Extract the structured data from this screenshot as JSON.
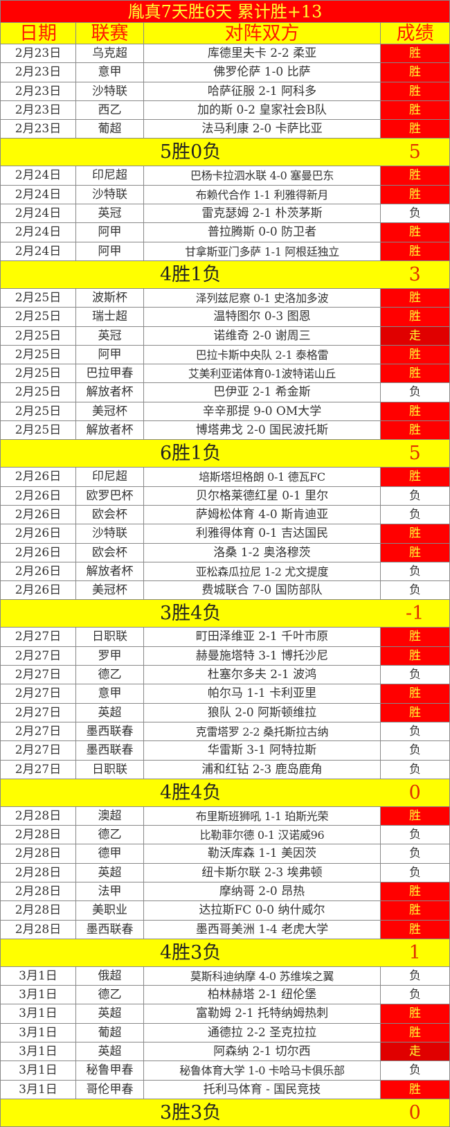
{
  "title": "胤真7天胜6天  累计胜+13",
  "headers": {
    "date": "日期",
    "league": "联赛",
    "match": "对阵双方",
    "result": "成绩"
  },
  "colors": {
    "title_bg": "#ff0000",
    "header_bg": "#ffff00",
    "win_bg": "#ff0000",
    "draw_bg": "#e00000",
    "text_yellow": "#ffff33"
  },
  "groups": [
    {
      "rows": [
        {
          "date": "2月23日",
          "league": "乌克超",
          "match": "库德里夫卡 2-2 柔亚",
          "result": "胜"
        },
        {
          "date": "2月23日",
          "league": "意甲",
          "match": "佛罗伦萨 1-0 比萨",
          "result": "胜"
        },
        {
          "date": "2月23日",
          "league": "沙特联",
          "match": "哈萨征服 2-1 阿科多",
          "result": "胜"
        },
        {
          "date": "2月23日",
          "league": "西乙",
          "match": "加的斯 0-2 皇家社会B队",
          "result": "胜"
        },
        {
          "date": "2月23日",
          "league": "葡超",
          "match": "法马利康 2-0 卡萨比亚",
          "result": "胜"
        }
      ],
      "summary": "5胜0负",
      "net": "5"
    },
    {
      "rows": [
        {
          "date": "2月24日",
          "league": "印尼超",
          "match": "巴杨卡拉泗水联 4-0 塞曼巴东",
          "result": "胜"
        },
        {
          "date": "2月24日",
          "league": "沙特联",
          "match": "布赖代合作 1-1 利雅得新月",
          "result": "胜"
        },
        {
          "date": "2月24日",
          "league": "英冠",
          "match": "雷克瑟姆 2-1 朴茨茅斯",
          "result": "负"
        },
        {
          "date": "2月24日",
          "league": "阿甲",
          "match": "普拉腾斯 0-0 防卫者",
          "result": "胜"
        },
        {
          "date": "2月24日",
          "league": "阿甲",
          "match": "甘拿斯亚门多萨 1-1 阿根廷独立",
          "result": "胜"
        }
      ],
      "summary": "4胜1负",
      "net": "3"
    },
    {
      "rows": [
        {
          "date": "2月25日",
          "league": "波斯杯",
          "match": "泽列兹尼察 0-1 史洛加多波",
          "result": "胜"
        },
        {
          "date": "2月25日",
          "league": "瑞士超",
          "match": "温特图尔 0-3 图恩",
          "result": "胜"
        },
        {
          "date": "2月25日",
          "league": "英冠",
          "match": "诺维奇 2-0 谢周三",
          "result": "走"
        },
        {
          "date": "2月25日",
          "league": "阿甲",
          "match": "巴拉卡斯中央队 2-1 泰格雷",
          "result": "胜"
        },
        {
          "date": "2月25日",
          "league": "巴拉甲春",
          "match": "艾美利亚诺体育0-1波特诺山丘",
          "result": "胜"
        },
        {
          "date": "2月25日",
          "league": "解放者杯",
          "match": "巴伊亚 2-1 希金斯",
          "result": "负"
        },
        {
          "date": "2月25日",
          "league": "美冠杯",
          "match": "辛辛那提 9-0 OM大学",
          "result": "胜"
        },
        {
          "date": "2月25日",
          "league": "解放者杯",
          "match": "博塔弗戈 2-0 国民波托斯",
          "result": "胜"
        }
      ],
      "summary": "6胜1负",
      "net": "5"
    },
    {
      "rows": [
        {
          "date": "2月26日",
          "league": "印尼超",
          "match": "培斯塔坦格朗 0-1 德瓦FC",
          "result": "胜"
        },
        {
          "date": "2月26日",
          "league": "欧罗巴杯",
          "match": "贝尔格莱德红星 0-1 里尔",
          "result": "负"
        },
        {
          "date": "2月26日",
          "league": "欧会杯",
          "match": "萨姆松体育 4-0 斯肯迪亚",
          "result": "负"
        },
        {
          "date": "2月26日",
          "league": "沙特联",
          "match": "利雅得体育 0-1 吉达国民",
          "result": "胜"
        },
        {
          "date": "2月26日",
          "league": "欧会杯",
          "match": "洛桑 1-2 奥洛穆茨",
          "result": "胜"
        },
        {
          "date": "2月26日",
          "league": "解放者杯",
          "match": "亚松森瓜拉尼 1-2 尤文提度",
          "result": "负"
        },
        {
          "date": "2月26日",
          "league": "美冠杯",
          "match": "费城联合 7-0 国防部队",
          "result": "负"
        }
      ],
      "summary": "3胜4负",
      "net": "-1"
    },
    {
      "rows": [
        {
          "date": "2月27日",
          "league": "日职联",
          "match": "町田泽维亚 2-1 千叶市原",
          "result": "胜"
        },
        {
          "date": "2月27日",
          "league": "罗甲",
          "match": "赫曼施塔特 3-1 博托沙尼",
          "result": "胜"
        },
        {
          "date": "2月27日",
          "league": "德乙",
          "match": "杜塞尔多夫 2-1 波鸿",
          "result": "负"
        },
        {
          "date": "2月27日",
          "league": "意甲",
          "match": "帕尔马 1-1 卡利亚里",
          "result": "胜"
        },
        {
          "date": "2月27日",
          "league": "英超",
          "match": "狼队 2-0 阿斯顿维拉",
          "result": "胜"
        },
        {
          "date": "2月27日",
          "league": "墨西联春",
          "match": "克雷塔罗 2-2 桑托斯拉古纳",
          "result": "负"
        },
        {
          "date": "2月27日",
          "league": "墨西联春",
          "match": "华雷斯 3-1 阿特拉斯",
          "result": "负"
        },
        {
          "date": "2月27日",
          "league": "日职联",
          "match": "浦和红钻 2-3 鹿岛鹿角",
          "result": "负"
        }
      ],
      "summary": "4胜4负",
      "net": "0"
    },
    {
      "rows": [
        {
          "date": "2月28日",
          "league": "澳超",
          "match": "布里斯班狮吼 1-1 珀斯光荣",
          "result": "胜"
        },
        {
          "date": "2月28日",
          "league": "德乙",
          "match": "比勒菲尔德 0-1 汉诺威96",
          "result": "负"
        },
        {
          "date": "2月28日",
          "league": "德甲",
          "match": "勒沃库森 1-1 美因茨",
          "result": "负"
        },
        {
          "date": "2月28日",
          "league": "英超",
          "match": "纽卡斯尔联 2-3 埃弗顿",
          "result": "负"
        },
        {
          "date": "2月28日",
          "league": "法甲",
          "match": "摩纳哥 2-0 昂热",
          "result": "胜"
        },
        {
          "date": "2月28日",
          "league": "美职业",
          "match": "达拉斯FC 0-0 纳什威尔",
          "result": "胜"
        },
        {
          "date": "2月28日",
          "league": "墨西联春",
          "match": "墨西哥美洲 1-4 老虎大学",
          "result": "胜"
        }
      ],
      "summary": "4胜3负",
      "net": "1"
    },
    {
      "rows": [
        {
          "date": "3月1日",
          "league": "俄超",
          "match": "莫斯科迪纳摩 4-0 苏维埃之翼",
          "result": "负"
        },
        {
          "date": "3月1日",
          "league": "德乙",
          "match": "柏林赫塔 2-1 纽伦堡",
          "result": "负"
        },
        {
          "date": "3月1日",
          "league": "英超",
          "match": "富勒姆 2-1 托特纳姆热刺",
          "result": "胜"
        },
        {
          "date": "3月1日",
          "league": "葡超",
          "match": "通德拉 2-2 圣克拉拉",
          "result": "胜"
        },
        {
          "date": "3月1日",
          "league": "英超",
          "match": "阿森纳 2-1 切尔西",
          "result": "走"
        },
        {
          "date": "3月1日",
          "league": "秘鲁甲春",
          "match": "秘鲁体育大学 1-0 卡哈马卡俱乐部",
          "result": "负"
        },
        {
          "date": "3月1日",
          "league": "哥伦甲春",
          "match": "托利马体育 - 国民竞技",
          "result": "胜"
        }
      ],
      "summary": "3胜3负",
      "net": "0"
    }
  ]
}
